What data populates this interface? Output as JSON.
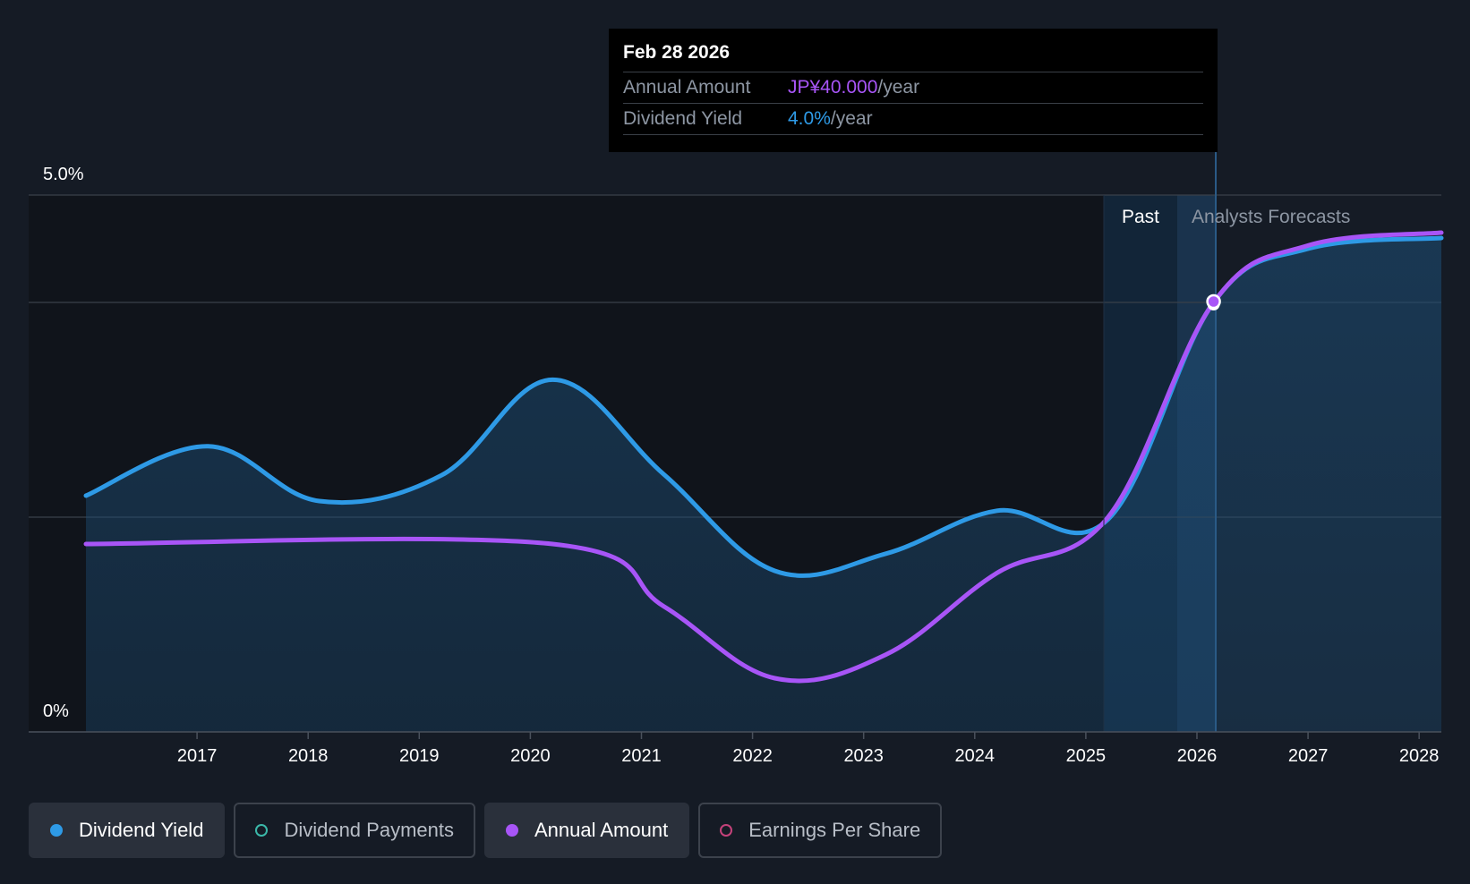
{
  "chart_data": {
    "type": "line",
    "x_ticks": [
      "2017",
      "2018",
      "2019",
      "2020",
      "2021",
      "2022",
      "2023",
      "2024",
      "2025",
      "2026",
      "2027",
      "2028"
    ],
    "y_ticks": [
      "5.0%",
      "0%"
    ],
    "ylim": [
      0,
      5.0
    ],
    "series": [
      {
        "name": "Dividend Yield",
        "color": "#2e9ae6",
        "points": [
          [
            2016.0,
            2.2
          ],
          [
            2017.1,
            2.66
          ],
          [
            2018.1,
            2.15
          ],
          [
            2019.2,
            2.39
          ],
          [
            2020.2,
            3.28
          ],
          [
            2021.2,
            2.4
          ],
          [
            2022.2,
            1.5
          ],
          [
            2023.2,
            1.66
          ],
          [
            2024.2,
            2.06
          ],
          [
            2025.2,
            1.98
          ],
          [
            2026.15,
            4.0
          ],
          [
            2027.0,
            4.5
          ],
          [
            2028.2,
            4.6
          ]
        ]
      },
      {
        "name": "Annual Amount",
        "color": "#a855f7",
        "points": [
          [
            2016.0,
            1.75
          ],
          [
            2020.2,
            1.75
          ],
          [
            2021.2,
            1.17
          ],
          [
            2022.2,
            0.5
          ],
          [
            2023.2,
            0.72
          ],
          [
            2024.2,
            1.48
          ],
          [
            2025.2,
            2.0
          ],
          [
            2026.15,
            4.0
          ],
          [
            2027.0,
            4.53
          ],
          [
            2028.2,
            4.65
          ]
        ]
      }
    ],
    "past_label": "Past",
    "forecast_label": "Analysts Forecasts",
    "past_forecast_boundary": 2026.15
  },
  "tooltip": {
    "date": "Feb 28 2026",
    "annual_amount_label": "Annual Amount",
    "annual_amount_value": "JP¥40.000",
    "annual_amount_unit": "/year",
    "dividend_yield_label": "Dividend Yield",
    "dividend_yield_value": "4.0%",
    "dividend_yield_unit": "/year"
  },
  "legend": {
    "dividend_yield": "Dividend Yield",
    "dividend_payments": "Dividend Payments",
    "annual_amount": "Annual Amount",
    "earnings_per_share": "Earnings Per Share"
  }
}
